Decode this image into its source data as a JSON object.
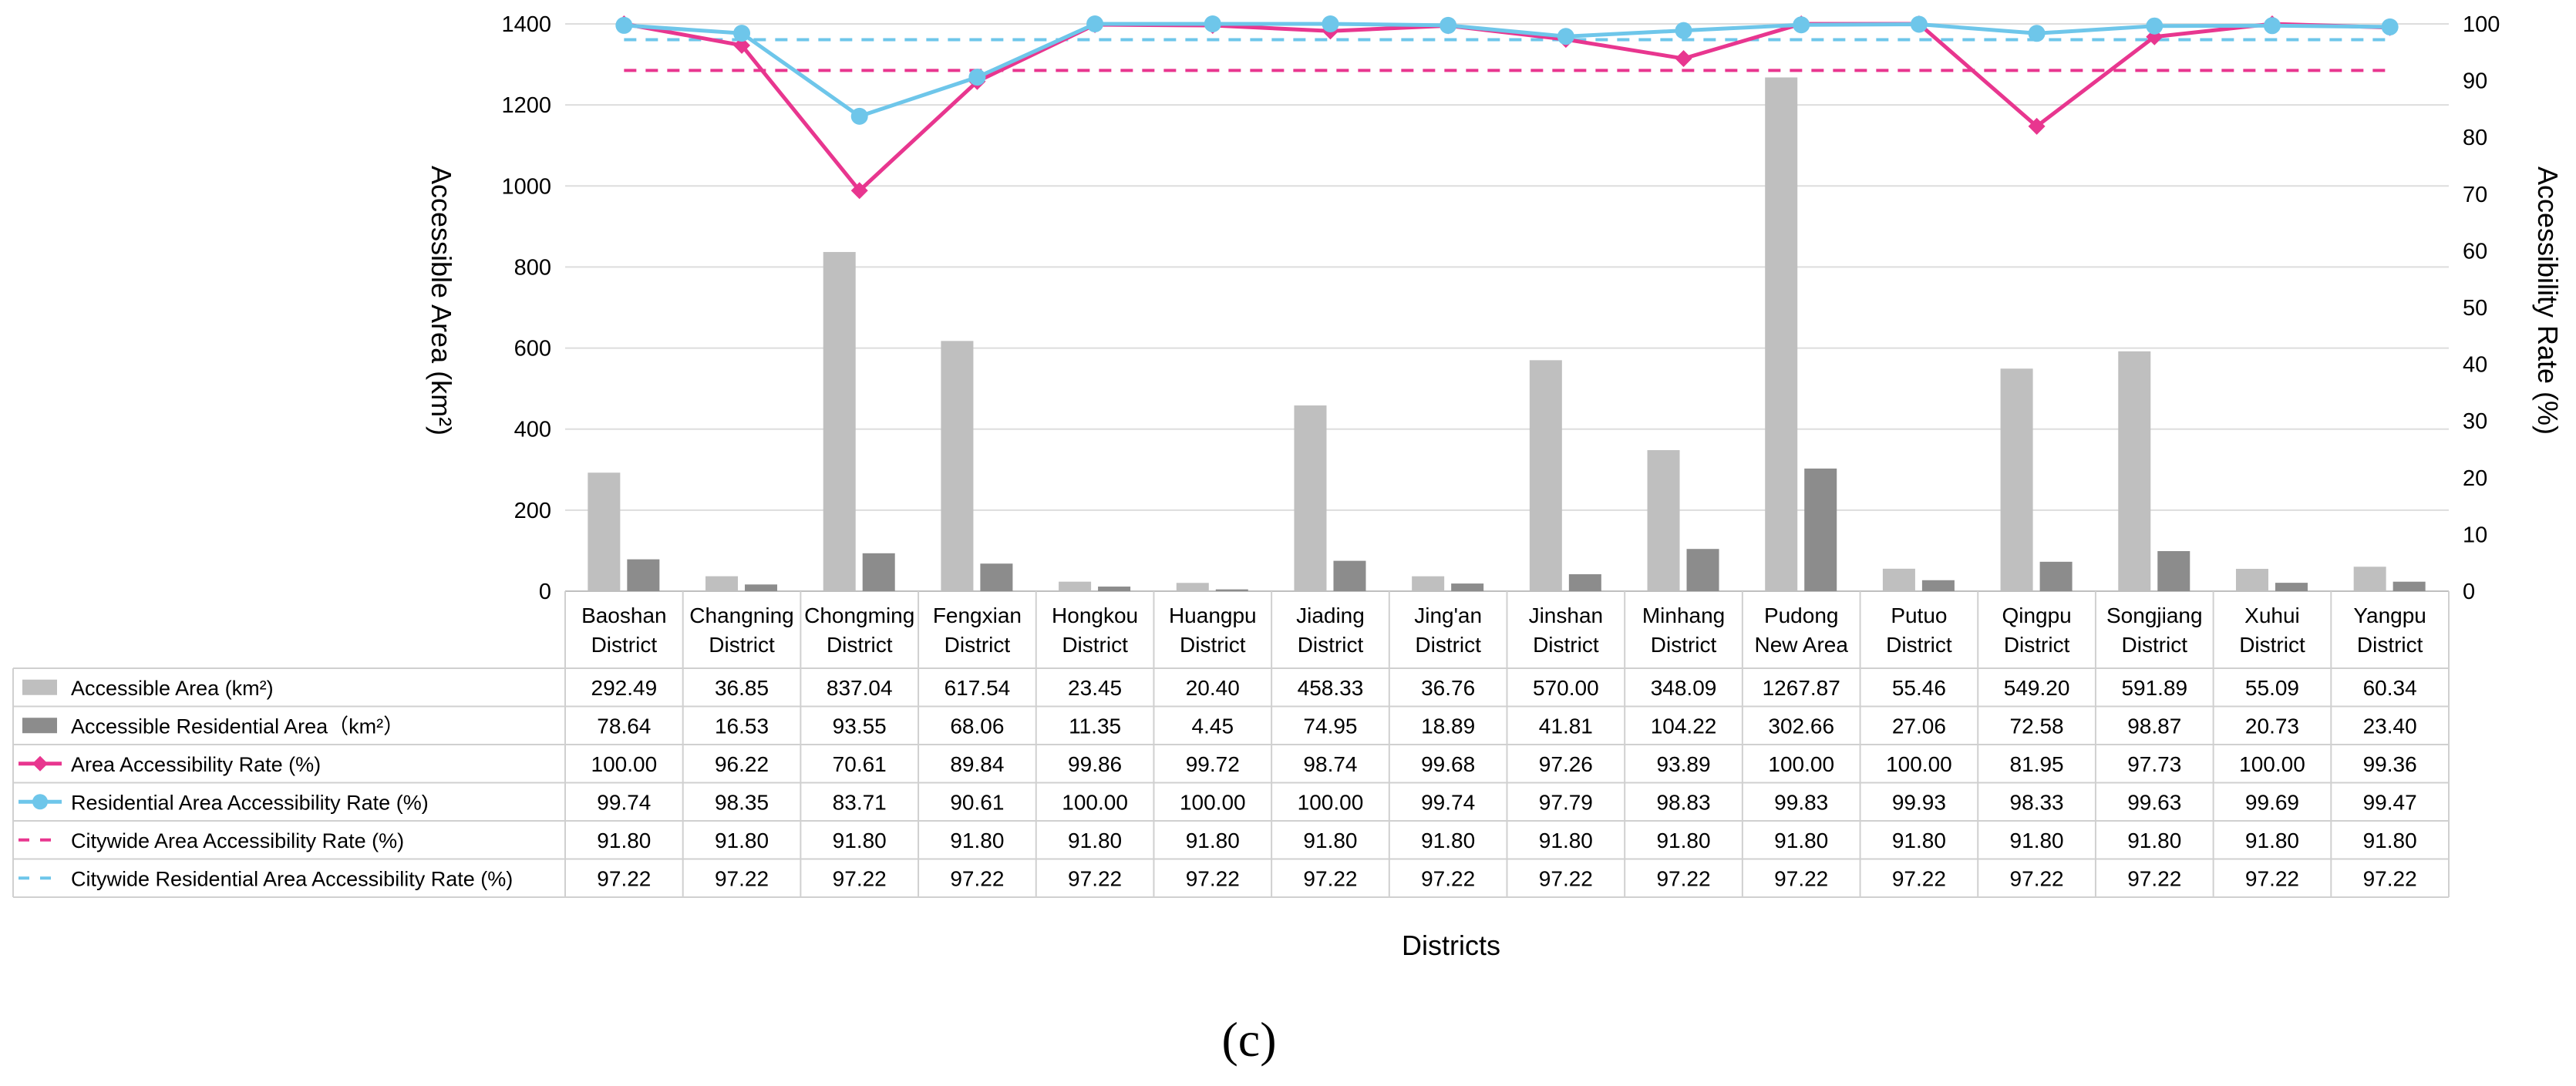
{
  "chart_data": {
    "type": "bar+line",
    "xlabel": "Districts",
    "ylabel_left": "Accessible Area (km²)",
    "ylabel_right": "Accessibility Rate (%)",
    "ylim_left": [
      0,
      1400
    ],
    "ylim_right": [
      0,
      100
    ],
    "yticks_left": [
      "0",
      "200",
      "400",
      "600",
      "800",
      "1000",
      "1200",
      "1400"
    ],
    "yticks_right": [
      "0",
      "10",
      "20",
      "30",
      "40",
      "50",
      "60",
      "70",
      "80",
      "90",
      "100"
    ],
    "categories": [
      [
        "Baoshan",
        "District"
      ],
      [
        "Changning",
        "District"
      ],
      [
        "Chongming",
        "District"
      ],
      [
        "Fengxian",
        "District"
      ],
      [
        "Hongkou",
        "District"
      ],
      [
        "Huangpu",
        "District"
      ],
      [
        "Jiading",
        "District"
      ],
      [
        "Jing'an",
        "District"
      ],
      [
        "Jinshan",
        "District"
      ],
      [
        "Minhang",
        "District"
      ],
      [
        "Pudong",
        "New Area"
      ],
      [
        "Putuo",
        "District"
      ],
      [
        "Qingpu",
        "District"
      ],
      [
        "Songjiang",
        "District"
      ],
      [
        "Xuhui",
        "District"
      ],
      [
        "Yangpu",
        "District"
      ]
    ],
    "series": [
      {
        "name": "Accessible Area (km²)",
        "kind": "bar",
        "axis": "left",
        "color": "#bfbfbf",
        "values": [
          292.49,
          36.85,
          837.04,
          617.54,
          23.45,
          20.4,
          458.33,
          36.76,
          570.0,
          348.09,
          1267.87,
          55.46,
          549.2,
          591.89,
          55.09,
          60.34
        ],
        "labels": [
          "292.49",
          "36.85",
          "837.04",
          "617.54",
          "23.45",
          "20.40",
          "458.33",
          "36.76",
          "570.00",
          "348.09",
          "1267.87",
          "55.46",
          "549.20",
          "591.89",
          "55.09",
          "60.34"
        ]
      },
      {
        "name": "Accessible Residential Area（km²）",
        "kind": "bar",
        "axis": "left",
        "color": "#8c8c8c",
        "values": [
          78.64,
          16.53,
          93.55,
          68.06,
          11.35,
          4.45,
          74.95,
          18.89,
          41.81,
          104.22,
          302.66,
          27.06,
          72.58,
          98.87,
          20.73,
          23.4
        ],
        "labels": [
          "78.64",
          "16.53",
          "93.55",
          "68.06",
          "11.35",
          "4.45",
          "74.95",
          "18.89",
          "41.81",
          "104.22",
          "302.66",
          "27.06",
          "72.58",
          "98.87",
          "20.73",
          "23.40"
        ]
      },
      {
        "name": "Area Accessibility Rate (%)",
        "kind": "line",
        "marker": "diamond",
        "axis": "right",
        "color": "#e8368f",
        "values": [
          100.0,
          96.22,
          70.61,
          89.84,
          99.86,
          99.72,
          98.74,
          99.68,
          97.26,
          93.89,
          100.0,
          100.0,
          81.95,
          97.73,
          100.0,
          99.36
        ],
        "labels": [
          "100.00",
          "96.22",
          "70.61",
          "89.84",
          "99.86",
          "99.72",
          "98.74",
          "99.68",
          "97.26",
          "93.89",
          "100.00",
          "100.00",
          "81.95",
          "97.73",
          "100.00",
          "99.36"
        ]
      },
      {
        "name": "Residential Area Accessibility Rate (%)",
        "kind": "line",
        "marker": "circle",
        "axis": "right",
        "color": "#6ec6ea",
        "values": [
          99.74,
          98.35,
          83.71,
          90.61,
          100.0,
          100.0,
          100.0,
          99.74,
          97.79,
          98.83,
          99.83,
          99.93,
          98.33,
          99.63,
          99.69,
          99.47
        ],
        "labels": [
          "99.74",
          "98.35",
          "83.71",
          "90.61",
          "100.00",
          "100.00",
          "100.00",
          "99.74",
          "97.79",
          "98.83",
          "99.83",
          "99.93",
          "98.33",
          "99.63",
          "99.69",
          "99.47"
        ]
      },
      {
        "name": "Citywide Area Accessibility Rate (%)",
        "kind": "dashed",
        "axis": "right",
        "color": "#e8368f",
        "values": [
          91.8,
          91.8,
          91.8,
          91.8,
          91.8,
          91.8,
          91.8,
          91.8,
          91.8,
          91.8,
          91.8,
          91.8,
          91.8,
          91.8,
          91.8,
          91.8
        ],
        "labels": [
          "91.80",
          "91.80",
          "91.80",
          "91.80",
          "91.80",
          "91.80",
          "91.80",
          "91.80",
          "91.80",
          "91.80",
          "91.80",
          "91.80",
          "91.80",
          "91.80",
          "91.80",
          "91.80"
        ]
      },
      {
        "name": "Citywide Residential Area Accessibility Rate (%)",
        "kind": "dashed",
        "axis": "right",
        "color": "#6ec6ea",
        "values": [
          97.22,
          97.22,
          97.22,
          97.22,
          97.22,
          97.22,
          97.22,
          97.22,
          97.22,
          97.22,
          97.22,
          97.22,
          97.22,
          97.22,
          97.22,
          97.22
        ],
        "labels": [
          "97.22",
          "97.22",
          "97.22",
          "97.22",
          "97.22",
          "97.22",
          "97.22",
          "97.22",
          "97.22",
          "97.22",
          "97.22",
          "97.22",
          "97.22",
          "97.22",
          "97.22",
          "97.22"
        ]
      }
    ]
  },
  "panel_label": "(c)"
}
